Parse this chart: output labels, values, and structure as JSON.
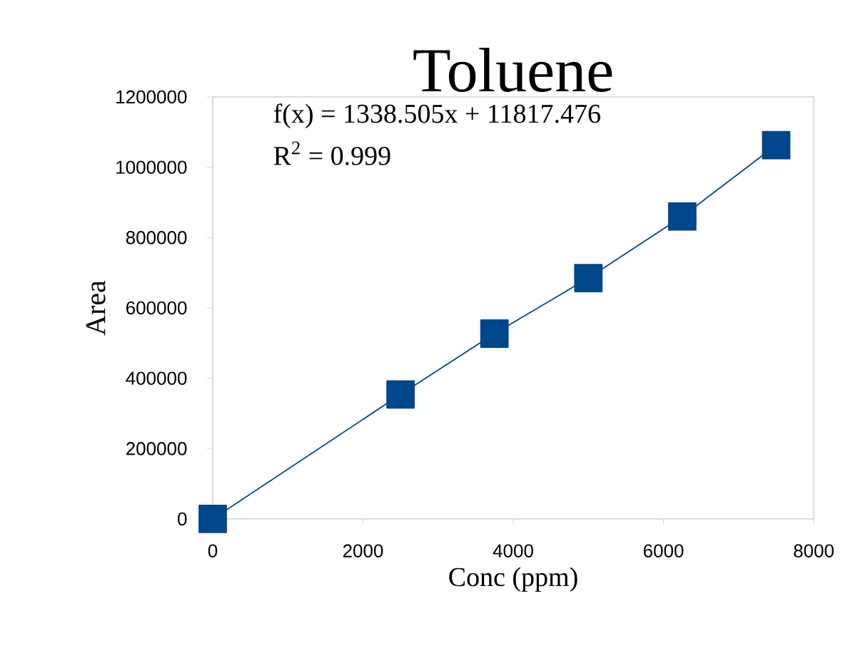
{
  "chart_data": {
    "type": "line",
    "title": "Toluene",
    "xlabel": "Conc (ppm)",
    "ylabel": "Area",
    "x": [
      0,
      2500,
      3750,
      5000,
      6250,
      7500
    ],
    "series": [
      {
        "color": "#00468b",
        "values": [
          0,
          354000,
          527000,
          685000,
          860000,
          1063000
        ]
      }
    ],
    "marker": "square",
    "line_style": "solid",
    "grid": false,
    "xlim": [
      0,
      8000
    ],
    "xticks": [
      0,
      2000,
      4000,
      6000,
      8000
    ],
    "ylim": [
      0,
      1200000
    ],
    "yticks": [
      0,
      200000,
      400000,
      600000,
      800000,
      1000000,
      1200000
    ],
    "annotations": [
      "f(x) = 1338.505x + 11817.476",
      "R$^{2}$ = 0.999"
    ]
  }
}
